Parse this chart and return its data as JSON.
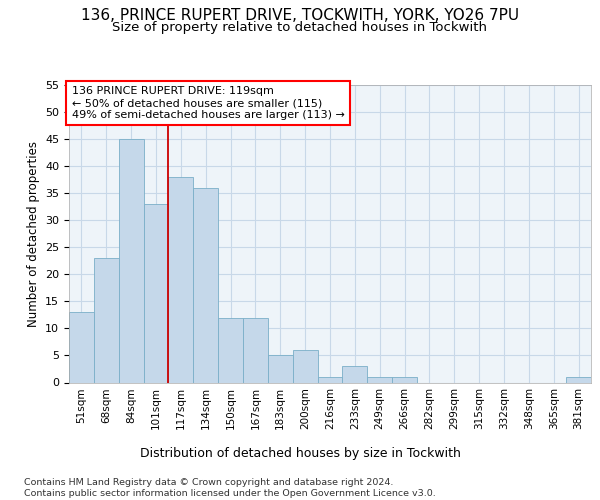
{
  "title1": "136, PRINCE RUPERT DRIVE, TOCKWITH, YORK, YO26 7PU",
  "title2": "Size of property relative to detached houses in Tockwith",
  "xlabel": "Distribution of detached houses by size in Tockwith",
  "ylabel": "Number of detached properties",
  "categories": [
    "51sqm",
    "68sqm",
    "84sqm",
    "101sqm",
    "117sqm",
    "134sqm",
    "150sqm",
    "167sqm",
    "183sqm",
    "200sqm",
    "216sqm",
    "233sqm",
    "249sqm",
    "266sqm",
    "282sqm",
    "299sqm",
    "315sqm",
    "332sqm",
    "348sqm",
    "365sqm",
    "381sqm"
  ],
  "values": [
    13,
    23,
    45,
    33,
    38,
    36,
    12,
    12,
    5,
    6,
    1,
    3,
    1,
    1,
    0,
    0,
    0,
    0,
    0,
    0,
    1
  ],
  "bar_color": "#c5d8ea",
  "bar_edge_color": "#7aafc8",
  "vline_index": 4,
  "vline_color": "#cc0000",
  "annotation_text": "136 PRINCE RUPERT DRIVE: 119sqm\n← 50% of detached houses are smaller (115)\n49% of semi-detached houses are larger (113) →",
  "ylim_max": 55,
  "yticks": [
    0,
    5,
    10,
    15,
    20,
    25,
    30,
    35,
    40,
    45,
    50,
    55
  ],
  "grid_color": "#c8d8e8",
  "plot_bg_color": "#eef4f9",
  "footer": "Contains HM Land Registry data © Crown copyright and database right 2024.\nContains public sector information licensed under the Open Government Licence v3.0."
}
